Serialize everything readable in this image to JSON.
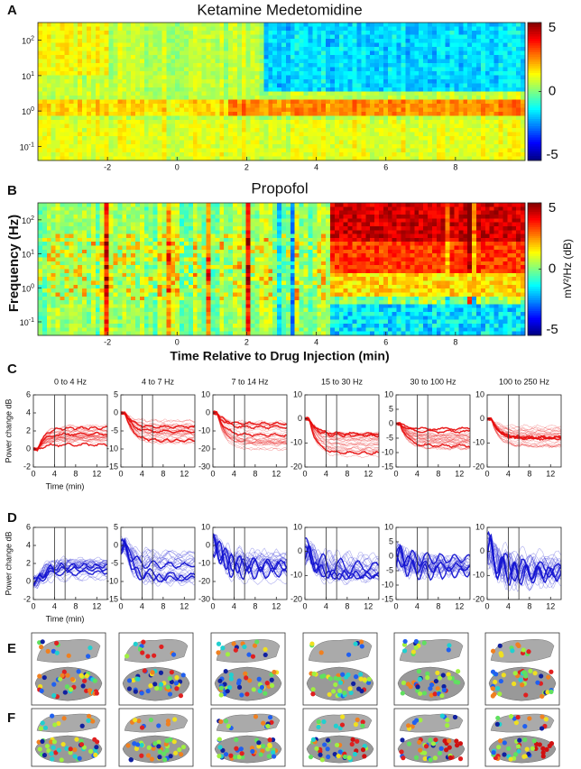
{
  "panel_labels": [
    "A",
    "B",
    "C",
    "D",
    "E",
    "F"
  ],
  "spectrograms": [
    {
      "title": "Ketamine Medetomidine",
      "xlim": [
        -4,
        10
      ],
      "xticks": [
        -2,
        0,
        2,
        4,
        6,
        8
      ],
      "ylim": [
        0.04,
        316
      ],
      "log_y": true,
      "yticks": [
        {
          "value": 100,
          "label": "10",
          "exponent": "2"
        },
        {
          "value": 10,
          "label": "10",
          "exponent": "1"
        },
        {
          "value": 1,
          "label": "10",
          "exponent": "0"
        },
        {
          "value": 0.1,
          "label": "10",
          "exponent": "-1"
        }
      ],
      "clim": [
        -5,
        5
      ],
      "colorbar_ticks": [
        5,
        0,
        -5
      ]
    },
    {
      "title": "Propofol",
      "xlim": [
        -4,
        10
      ],
      "xticks": [
        -2,
        0,
        2,
        4,
        6,
        8
      ],
      "ylim": [
        0.04,
        316
      ],
      "log_y": true,
      "yticks": [
        {
          "value": 100,
          "label": "10",
          "exponent": "2"
        },
        {
          "value": 10,
          "label": "10",
          "exponent": "1"
        },
        {
          "value": 1,
          "label": "10",
          "exponent": "0"
        },
        {
          "value": 0.1,
          "label": "10",
          "exponent": "-1"
        }
      ],
      "clim": [
        -5,
        5
      ],
      "colorbar_ticks": [
        5,
        0,
        -5
      ]
    }
  ],
  "y_label": "Frequency (Hz)",
  "colorbar_label": "mV²/Hz (dB)",
  "x_label": "Time Relative to Drug Injection (min)",
  "band_panels": {
    "titles": [
      "0 to 4 Hz",
      "4 to 7 Hz",
      "7 to 14 Hz",
      "15 to 30 Hz",
      "30 to 100 Hz",
      "100 to 250 Hz"
    ],
    "y_label": "Power change dB",
    "x_label": "Time  (min)",
    "xlim": [
      0,
      14
    ],
    "xticks": [
      0,
      4,
      8,
      12
    ],
    "window": [
      4,
      6
    ],
    "rows": [
      {
        "color": "#e81010",
        "panels": [
          {
            "ylim": [
              -2,
              6
            ],
            "yticks": [
              -2,
              0,
              2,
              4,
              6
            ],
            "level": 1.5
          },
          {
            "ylim": [
              -15,
              5
            ],
            "yticks": [
              -15,
              -10,
              -5,
              0,
              5
            ],
            "level": -5
          },
          {
            "ylim": [
              -30,
              10
            ],
            "yticks": [
              -30,
              -20,
              -10,
              0,
              10
            ],
            "level": -12
          },
          {
            "ylim": [
              -20,
              10
            ],
            "yticks": [
              -20,
              -10,
              0,
              10
            ],
            "level": -10
          },
          {
            "ylim": [
              -15,
              10
            ],
            "yticks": [
              -15,
              -10,
              -5,
              0,
              5,
              10
            ],
            "level": -5
          },
          {
            "ylim": [
              -20,
              10
            ],
            "yticks": [
              -20,
              -10,
              0,
              10
            ],
            "level": -7
          }
        ]
      },
      {
        "color": "#1414d2",
        "panels": [
          {
            "ylim": [
              -2,
              6
            ],
            "yticks": [
              -2,
              0,
              2,
              4,
              6
            ],
            "level": 1.5
          },
          {
            "ylim": [
              -15,
              5
            ],
            "yticks": [
              -15,
              -10,
              -5,
              0,
              5
            ],
            "level": -7
          },
          {
            "ylim": [
              -30,
              10
            ],
            "yticks": [
              -30,
              -20,
              -10,
              0,
              10
            ],
            "level": -12
          },
          {
            "ylim": [
              -20,
              10
            ],
            "yticks": [
              -20,
              -10,
              0,
              10
            ],
            "level": -7
          },
          {
            "ylim": [
              -15,
              10
            ],
            "yticks": [
              -15,
              -10,
              -5,
              0,
              5,
              10
            ],
            "level": -3
          },
          {
            "ylim": [
              -20,
              10
            ],
            "yticks": [
              -20,
              -10,
              0,
              10
            ],
            "level": -8
          }
        ]
      }
    ]
  }
}
